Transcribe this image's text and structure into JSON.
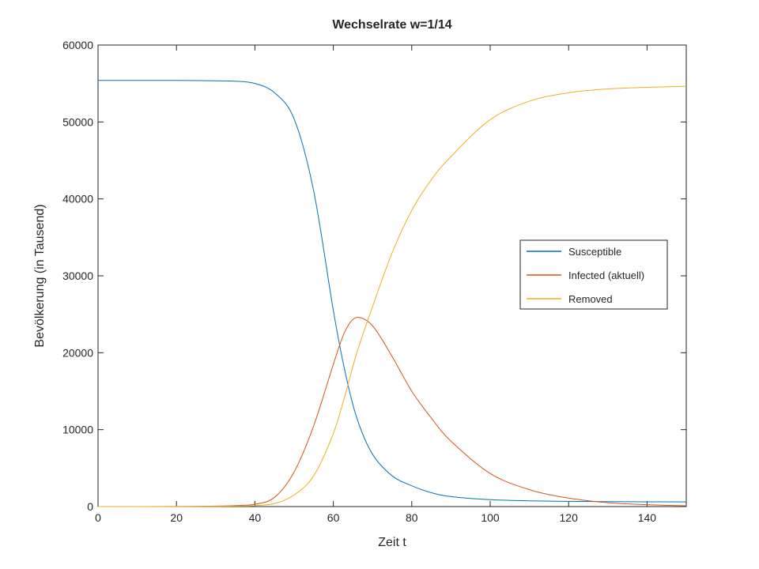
{
  "chart_data": {
    "type": "line",
    "title": "Wechselrate w=1/14",
    "xlabel": "Zeit t",
    "ylabel": "Bevölkerung (in Tausend)",
    "xlim": [
      0,
      150
    ],
    "ylim": [
      0,
      60000
    ],
    "xticks": [
      0,
      20,
      40,
      60,
      80,
      100,
      120,
      140
    ],
    "yticks": [
      0,
      10000,
      20000,
      30000,
      40000,
      50000,
      60000
    ],
    "grid": false,
    "legend_position": "right",
    "x": [
      0,
      10,
      20,
      30,
      35,
      40,
      45,
      50,
      55,
      60,
      63,
      66,
      70,
      75,
      80,
      85,
      90,
      100,
      110,
      120,
      130,
      140,
      150
    ],
    "series": [
      {
        "name": "Susceptible",
        "color": "#0072BD",
        "values": [
          55400,
          55400,
          55400,
          55350,
          55300,
          55000,
          53800,
          50400,
          41000,
          25500,
          17500,
          11500,
          6800,
          4000,
          2700,
          1800,
          1300,
          900,
          750,
          680,
          640,
          620,
          600
        ]
      },
      {
        "name": "Infected (aktuell)",
        "color": "#D95319",
        "values": [
          0,
          5,
          15,
          60,
          130,
          300,
          1200,
          4500,
          10500,
          18500,
          22800,
          24600,
          23500,
          19500,
          15000,
          11500,
          8500,
          4300,
          2200,
          1100,
          500,
          250,
          100
        ]
      },
      {
        "name": "Removed",
        "color": "#EDB120",
        "values": [
          0,
          2,
          8,
          30,
          60,
          120,
          400,
          1500,
          4000,
          9500,
          14500,
          20000,
          26000,
          33000,
          38500,
          42500,
          45500,
          50300,
          52700,
          53800,
          54300,
          54500,
          54650
        ]
      }
    ]
  }
}
